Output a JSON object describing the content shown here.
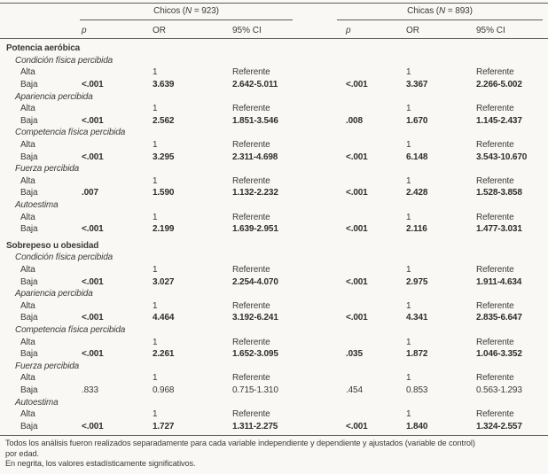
{
  "table": {
    "groups": [
      {
        "pre": "Chicos (",
        "n": "N",
        "post": " = 923)"
      },
      {
        "pre": "Chicas (",
        "n": "N",
        "post": " = 893)"
      }
    ],
    "col_headers": [
      "p",
      "OR",
      "95% CI",
      "p",
      "OR",
      "95% CI"
    ],
    "rows": [
      {
        "type": "section",
        "label": "Potencia aeróbica"
      },
      {
        "type": "subsection",
        "label": "Condición física percibida"
      },
      {
        "type": "data",
        "label": "Alta",
        "sig": false,
        "cells": [
          "",
          "1",
          "Referente",
          "",
          "1",
          "Referente"
        ]
      },
      {
        "type": "data",
        "label": "Baja",
        "sig": true,
        "cells": [
          "<.001",
          "3.639",
          "2.642-5.011",
          "<.001",
          "3.367",
          "2.266-5.002"
        ]
      },
      {
        "type": "subsection",
        "label": "Apariencia percibida"
      },
      {
        "type": "data",
        "label": "Alta",
        "sig": false,
        "cells": [
          "",
          "1",
          "Referente",
          "",
          "1",
          "Referente"
        ]
      },
      {
        "type": "data",
        "label": "Baja",
        "sig": true,
        "cells": [
          "<.001",
          "2.562",
          "1.851-3.546",
          ".008",
          "1.670",
          "1.145-2.437"
        ]
      },
      {
        "type": "subsection",
        "label": "Competencia física percibida"
      },
      {
        "type": "data",
        "label": "Alta",
        "sig": false,
        "cells": [
          "",
          "1",
          "Referente",
          "",
          "1",
          "Referente"
        ]
      },
      {
        "type": "data",
        "label": "Baja",
        "sig": true,
        "cells": [
          "<.001",
          "3.295",
          "2.311-4.698",
          "<.001",
          "6.148",
          "3.543-10.670"
        ]
      },
      {
        "type": "subsection",
        "label": "Fuerza percibida"
      },
      {
        "type": "data",
        "label": "Alta",
        "sig": false,
        "cells": [
          "",
          "1",
          "Referente",
          "",
          "1",
          "Referente"
        ]
      },
      {
        "type": "data",
        "label": "Baja",
        "sig": true,
        "cells": [
          ".007",
          "1.590",
          "1.132-2.232",
          "<.001",
          "2.428",
          "1.528-3.858"
        ]
      },
      {
        "type": "subsection",
        "label": "Autoestima"
      },
      {
        "type": "data",
        "label": "Alta",
        "sig": false,
        "cells": [
          "",
          "1",
          "Referente",
          "",
          "1",
          "Referente"
        ]
      },
      {
        "type": "data",
        "label": "Baja",
        "sig": true,
        "cells": [
          "<.001",
          "2.199",
          "1.639-2.951",
          "<.001",
          "2.116",
          "1.477-3.031"
        ]
      },
      {
        "type": "section",
        "label": "Sobrepeso u obesidad",
        "gap_before": true
      },
      {
        "type": "subsection",
        "label": "Condición física percibida"
      },
      {
        "type": "data",
        "label": "Alta",
        "sig": false,
        "cells": [
          "",
          "1",
          "Referente",
          "",
          "1",
          "Referente"
        ]
      },
      {
        "type": "data",
        "label": "Baja",
        "sig": true,
        "cells": [
          "<.001",
          "3.027",
          "2.254-4.070",
          "<.001",
          "2.975",
          "1.911-4.634"
        ]
      },
      {
        "type": "subsection",
        "label": "Apariencia percibida"
      },
      {
        "type": "data",
        "label": "Alta",
        "sig": false,
        "cells": [
          "",
          "1",
          "Referente",
          "",
          "1",
          "Referente"
        ]
      },
      {
        "type": "data",
        "label": "Baja",
        "sig": true,
        "cells": [
          "<.001",
          "4.464",
          "3.192-6.241",
          "<.001",
          "4.341",
          "2.835-6.647"
        ]
      },
      {
        "type": "subsection",
        "label": "Competencia física percibida"
      },
      {
        "type": "data",
        "label": "Alta",
        "sig": false,
        "cells": [
          "",
          "1",
          "Referente",
          "",
          "1",
          "Referente"
        ]
      },
      {
        "type": "data",
        "label": "Baja",
        "sig": true,
        "cells": [
          "<.001",
          "2.261",
          "1.652-3.095",
          ".035",
          "1.872",
          "1.046-3.352"
        ]
      },
      {
        "type": "subsection",
        "label": "Fuerza percibida"
      },
      {
        "type": "data",
        "label": "Alta",
        "sig": false,
        "cells": [
          "",
          "1",
          "Referente",
          "",
          "1",
          "Referente"
        ]
      },
      {
        "type": "data",
        "label": "Baja",
        "sig": false,
        "cells": [
          ".833",
          "0.968",
          "0.715-1.310",
          ".454",
          "0.853",
          "0.563-1.293"
        ]
      },
      {
        "type": "subsection",
        "label": "Autoestima"
      },
      {
        "type": "data",
        "label": "Alta",
        "sig": false,
        "cells": [
          "",
          "1",
          "Referente",
          "",
          "1",
          "Referente"
        ]
      },
      {
        "type": "data",
        "label": "Baja",
        "sig": true,
        "cells": [
          "<.001",
          "1.727",
          "1.311-2.275",
          "<.001",
          "1.840",
          "1.324-2.557"
        ]
      }
    ],
    "footnote_lines": [
      "Todos los análisis fueron realizados separadamente para cada variable independiente y dependiente y ajustados (variable de control)",
      "por edad.",
      "En negrita, los valores estadísticamente significativos."
    ]
  },
  "colors": {
    "background": "#f9f8f4",
    "text": "#3a3a37",
    "rule": "#5f5e5a"
  }
}
